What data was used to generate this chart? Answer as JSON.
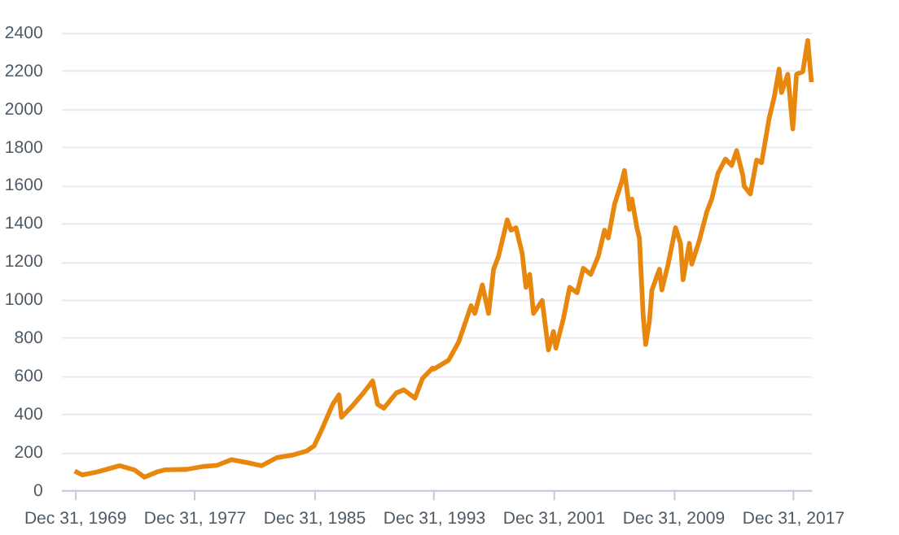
{
  "chart_data": {
    "type": "line",
    "x": [
      "1969-12-31",
      "1970-07",
      "1971-07",
      "1972-07",
      "1973-01",
      "1974-01",
      "1974-09",
      "1975-07",
      "1976-01",
      "1977-07",
      "1978-07",
      "1979-07",
      "1980-07",
      "1981-07",
      "1982-07",
      "1983-07",
      "1984-07",
      "1985-07",
      "1986-01",
      "1986-07",
      "1987-04",
      "1987-09",
      "1987-11",
      "1988-07",
      "1989-04",
      "1989-12",
      "1990-04",
      "1990-09",
      "1991-07",
      "1992-01",
      "1992-10",
      "1993-04",
      "1993-12",
      "1994-01",
      "1995-01",
      "1995-09",
      "1996-07",
      "1996-10",
      "1997-04",
      "1997-09",
      "1998-01",
      "1998-05",
      "1998-12",
      "1999-03",
      "1999-07",
      "1999-12",
      "2000-03",
      "2000-06",
      "2000-09",
      "2001-04",
      "2001-09",
      "2002-01",
      "2002-03",
      "2002-09",
      "2003-02",
      "2003-08",
      "2004-01",
      "2004-07",
      "2005-01",
      "2005-06",
      "2005-09",
      "2006-02",
      "2006-08",
      "2006-10",
      "2007-02",
      "2007-04",
      "2007-08",
      "2007-10",
      "2008-01",
      "2008-03",
      "2008-06",
      "2008-08",
      "2009-02",
      "2009-04",
      "2009-09",
      "2010-03",
      "2010-07",
      "2010-09",
      "2011-02",
      "2011-04",
      "2011-10",
      "2012-04",
      "2012-08",
      "2013-01",
      "2013-07",
      "2013-12",
      "2014-04",
      "2014-09",
      "2014-10",
      "2015-03",
      "2015-08",
      "2015-12",
      "2016-06",
      "2016-10",
      "2017-02",
      "2017-04",
      "2017-09",
      "2018-01",
      "2018-04",
      "2018-09",
      "2019-01",
      "2019-04"
    ],
    "series": [
      {
        "color": "#e8870e",
        "values": [
          100,
          80,
          95,
          117,
          128,
          106,
          68,
          95,
          106,
          109,
          123,
          130,
          160,
          145,
          128,
          170,
          183,
          205,
          232,
          314,
          450,
          500,
          382,
          436,
          505,
          573,
          450,
          430,
          510,
          526,
          483,
          586,
          640,
          635,
          682,
          777,
          968,
          927,
          1077,
          927,
          1159,
          1227,
          1418,
          1364,
          1377,
          1241,
          1064,
          1132,
          927,
          995,
          736,
          832,
          745,
          900,
          1064,
          1036,
          1164,
          1132,
          1227,
          1364,
          1323,
          1500,
          1623,
          1677,
          1473,
          1527,
          1377,
          1323,
          914,
          764,
          886,
          1050,
          1159,
          1050,
          1186,
          1377,
          1295,
          1104,
          1295,
          1186,
          1309,
          1459,
          1527,
          1663,
          1737,
          1704,
          1781,
          1650,
          1595,
          1554,
          1732,
          1718,
          1950,
          2059,
          2209,
          2086,
          2182,
          1895,
          2182,
          2195,
          2359,
          2141
        ]
      }
    ],
    "xlim": [
      "1969-01-31",
      "2019-04"
    ],
    "xticks": [
      {
        "value": "1969-12-31",
        "label": "Dec 31, 1969"
      },
      {
        "value": "1977-12-31",
        "label": "Dec 31, 1977"
      },
      {
        "value": "1985-12-31",
        "label": "Dec 31, 1985"
      },
      {
        "value": "1993-12-31",
        "label": "Dec 31, 1993"
      },
      {
        "value": "2001-12-31",
        "label": "Dec 31, 2001"
      },
      {
        "value": "2009-12-31",
        "label": "Dec 31, 2009"
      },
      {
        "value": "2017-12-31",
        "label": "Dec 31, 2017"
      }
    ],
    "ylim": [
      0,
      2400
    ],
    "yticks": [
      0,
      200,
      400,
      600,
      800,
      1000,
      1200,
      1400,
      1600,
      1800,
      2000,
      2200,
      2400
    ],
    "grid": "y",
    "marker": "none",
    "line_style": "solid"
  }
}
